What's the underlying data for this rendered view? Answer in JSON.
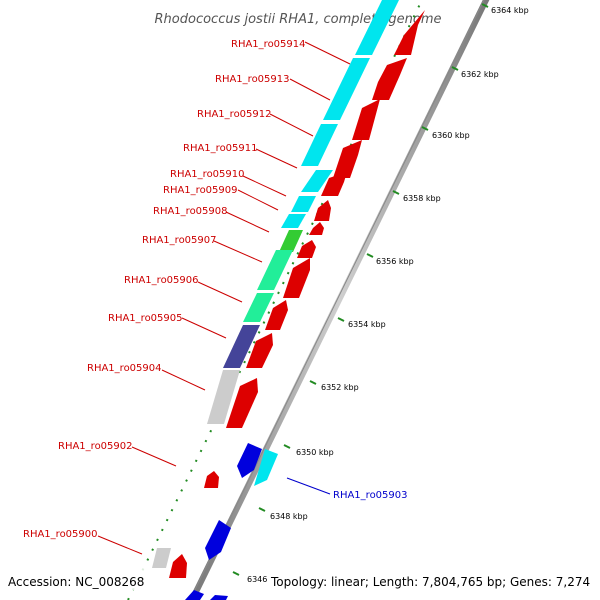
{
  "title": "Rhodococcus jostii RHA1, complete genome",
  "footer": {
    "accession": "Accession: NC_008268",
    "summary": "Topology: linear; Length: 7,804,765 bp; Genes: 7,274"
  },
  "ticks": [
    "6364 kbp",
    "6362 kbp",
    "6360 kbp",
    "6358 kbp",
    "6356 kbp",
    "6354 kbp",
    "6352 kbp",
    "6350 kbp",
    "6348 kbp",
    "6346"
  ],
  "genes": [
    {
      "label": "RHA1_ro05914",
      "color": "#cc0000",
      "strand": "forward",
      "class_color": "#00e5ee"
    },
    {
      "label": "RHA1_ro05913",
      "color": "#cc0000",
      "strand": "forward",
      "class_color": "#00e5ee"
    },
    {
      "label": "RHA1_ro05912",
      "color": "#cc0000",
      "strand": "forward",
      "class_color": "#00e5ee"
    },
    {
      "label": "RHA1_ro05911",
      "color": "#cc0000",
      "strand": "forward",
      "class_color": "#00e5ee"
    },
    {
      "label": "RHA1_ro05910",
      "color": "#cc0000",
      "strand": "forward",
      "class_color": "#00e5ee"
    },
    {
      "label": "RHA1_ro05909",
      "color": "#cc0000",
      "strand": "forward",
      "class_color": "#00e5ee"
    },
    {
      "label": "RHA1_ro05908",
      "color": "#cc0000",
      "strand": "forward",
      "class_color": "#00e5ee"
    },
    {
      "label": "RHA1_ro05907",
      "color": "#cc0000",
      "strand": "forward",
      "class_color": "#33cc33"
    },
    {
      "label": "RHA1_ro05906",
      "color": "#cc0000",
      "strand": "forward",
      "class_color": "#22ee99"
    },
    {
      "label": "RHA1_ro05905",
      "color": "#cc0000",
      "strand": "forward",
      "class_color": "#22ee99"
    },
    {
      "label": "RHA1_ro05904",
      "color": "#cc0000",
      "strand": "forward",
      "class_color": "#444499"
    },
    {
      "label": "RHA1_ro05903",
      "color": "#0000cc",
      "strand": "reverse",
      "class_color": "#00e5ee"
    },
    {
      "label": "RHA1_ro05902",
      "color": "#cc0000",
      "strand": "forward",
      "class_color": "#cccccc"
    },
    {
      "label": "RHA1_ro05900",
      "color": "#cc0000",
      "strand": "forward",
      "class_color": "#cccccc"
    }
  ]
}
